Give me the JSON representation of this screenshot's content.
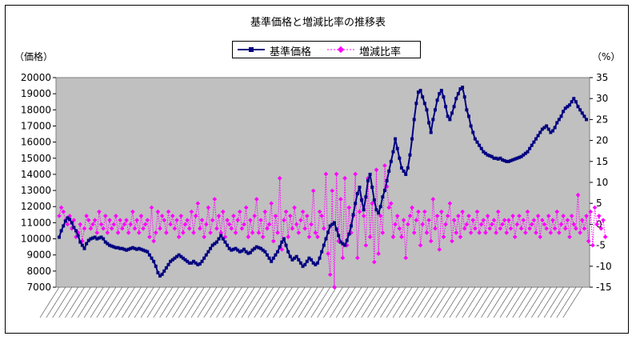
{
  "chart": {
    "title": "基準価格と増減比率の推移表",
    "left_unit": "（価格）",
    "right_unit": "（%）"
  },
  "legend": [
    {
      "name": "基準価格",
      "color": "#000080"
    },
    {
      "name": "増減比率",
      "color": "#FF00FF"
    }
  ],
  "chart_data": {
    "type": "line",
    "title": "基準価格と増減比率の推移表",
    "y_left": {
      "label": "（価格）",
      "min": 7000,
      "max": 20000,
      "step": 1000
    },
    "y_right": {
      "label": "（%）",
      "min": -15,
      "max": 35,
      "step": 5
    },
    "grid": false,
    "plot_background": "#C0C0C0",
    "legend_position": "top",
    "x_tick_labels_note": "dense rotated date labels, illegible",
    "series": [
      {
        "name": "基準価格",
        "axis": "left",
        "color": "#000080",
        "style": "solid-square-markers",
        "values": [
          10100,
          10500,
          10800,
          11100,
          11300,
          11200,
          11000,
          10700,
          10500,
          10200,
          9800,
          9600,
          9400,
          9700,
          9900,
          10000,
          10050,
          10100,
          10000,
          10050,
          10100,
          10000,
          9800,
          9700,
          9600,
          9550,
          9500,
          9450,
          9450,
          9400,
          9400,
          9350,
          9300,
          9350,
          9400,
          9450,
          9400,
          9350,
          9400,
          9350,
          9300,
          9250,
          9200,
          9000,
          8800,
          8600,
          8300,
          7900,
          7700,
          7800,
          8000,
          8200,
          8400,
          8600,
          8700,
          8800,
          8900,
          9000,
          8900,
          8800,
          8700,
          8600,
          8500,
          8500,
          8600,
          8500,
          8400,
          8450,
          8600,
          8800,
          9000,
          9200,
          9400,
          9600,
          9700,
          9800,
          10000,
          10200,
          10000,
          9800,
          9600,
          9400,
          9300,
          9350,
          9400,
          9300,
          9200,
          9250,
          9350,
          9200,
          9100,
          9150,
          9300,
          9400,
          9500,
          9450,
          9400,
          9300,
          9200,
          9000,
          8800,
          8600,
          8800,
          9000,
          9200,
          9500,
          9800,
          10000,
          9600,
          9200,
          8900,
          8700,
          8800,
          8900,
          8700,
          8500,
          8300,
          8400,
          8600,
          8800,
          8700,
          8500,
          8400,
          8500,
          8800,
          9200,
          9600,
          10000,
          10400,
          10800,
          10900,
          11000,
          10600,
          10200,
          9800,
          9700,
          9600,
          9900,
          10300,
          10800,
          11500,
          12200,
          12800,
          13200,
          12400,
          11800,
          12600,
          13600,
          14000,
          13200,
          12400,
          11800,
          11600,
          12000,
          12600,
          13000,
          13600,
          14200,
          14800,
          15400,
          16200,
          15600,
          15000,
          14400,
          14200,
          14000,
          14400,
          15200,
          16200,
          17400,
          18400,
          19100,
          19200,
          18800,
          18400,
          18000,
          17200,
          16600,
          17400,
          18000,
          18600,
          19000,
          19200,
          18800,
          18200,
          17600,
          17400,
          17800,
          18200,
          18700,
          19000,
          19300,
          19400,
          18800,
          18000,
          17600,
          17000,
          16600,
          16200,
          16000,
          15800,
          15600,
          15400,
          15300,
          15200,
          15150,
          15100,
          15000,
          15000,
          14950,
          15000,
          14900,
          14850,
          14800,
          14800,
          14850,
          14900,
          14950,
          15000,
          15050,
          15100,
          15200,
          15300,
          15400,
          15600,
          15800,
          16000,
          16200,
          16400,
          16600,
          16800,
          16900,
          17000,
          16800,
          16600,
          16700,
          16900,
          17200,
          17400,
          17600,
          17900,
          18100,
          18200,
          18300,
          18500,
          18700,
          18500,
          18200,
          18000,
          17800,
          17600,
          17400
        ]
      },
      {
        "name": "増減比率",
        "axis": "right",
        "color": "#FF00FF",
        "style": "dotted-diamond-markers",
        "values": [
          2,
          4,
          3,
          1,
          0,
          2,
          -1,
          1,
          -3,
          -2,
          0,
          -4,
          -1,
          2,
          1,
          -1,
          0,
          1,
          -2,
          3,
          0,
          -1,
          2,
          -2,
          1,
          -1,
          0,
          2,
          -2,
          1,
          -1,
          0,
          1,
          -2,
          0,
          3,
          -1,
          1,
          -2,
          2,
          -1,
          0,
          1,
          -3,
          4,
          -4,
          -2,
          3,
          -1,
          2,
          1,
          -2,
          3,
          0,
          2,
          -1,
          1,
          -3,
          2,
          -2,
          0,
          1,
          -1,
          3,
          -2,
          2,
          5,
          -1,
          1,
          -3,
          0,
          4,
          -2,
          1,
          6,
          -1,
          2,
          -2,
          3,
          -3,
          1,
          0,
          -1,
          2,
          -2,
          1,
          3,
          -1,
          0,
          4,
          -3,
          1,
          -2,
          2,
          6,
          -2,
          1,
          -3,
          3,
          -1,
          0,
          5,
          -4,
          2,
          -2,
          11,
          -6,
          1,
          3,
          -3,
          2,
          -1,
          4,
          0,
          -2,
          1,
          3,
          -1,
          2,
          -3,
          0,
          8,
          -2,
          -3,
          3,
          2,
          -1,
          12,
          -7,
          -12,
          8,
          -15,
          12,
          -4,
          6,
          -8,
          11,
          -5,
          4,
          -2,
          2,
          12,
          -8,
          3,
          6,
          2,
          -5,
          11,
          -3,
          5,
          -9,
          13,
          -7,
          2,
          -2,
          14,
          9,
          4,
          5,
          -3,
          0,
          2,
          -1,
          -3,
          1,
          -8,
          0,
          2,
          4,
          -2,
          1,
          3,
          -5,
          0,
          3,
          -2,
          1,
          -4,
          6,
          -1,
          2,
          -6,
          3,
          -3,
          0,
          2,
          5,
          -4,
          1,
          -2,
          2,
          -3,
          3,
          -1,
          0,
          2,
          -2,
          1,
          -1,
          3,
          -2,
          0,
          1,
          -2,
          2,
          -1,
          0,
          1,
          -2,
          3,
          -1,
          0,
          1,
          -2,
          1,
          -1,
          2,
          -3,
          0,
          2,
          -1,
          1,
          -2,
          3,
          -1,
          0,
          1,
          -2,
          2,
          -3,
          1,
          0,
          -1,
          2,
          -2,
          1,
          -1,
          3,
          -2,
          0,
          2,
          -1,
          1,
          -3,
          2,
          0,
          -1,
          7,
          -2,
          1,
          -1,
          2,
          -4,
          3,
          -5,
          4,
          0,
          2,
          -1,
          1,
          -3
        ]
      }
    ]
  }
}
